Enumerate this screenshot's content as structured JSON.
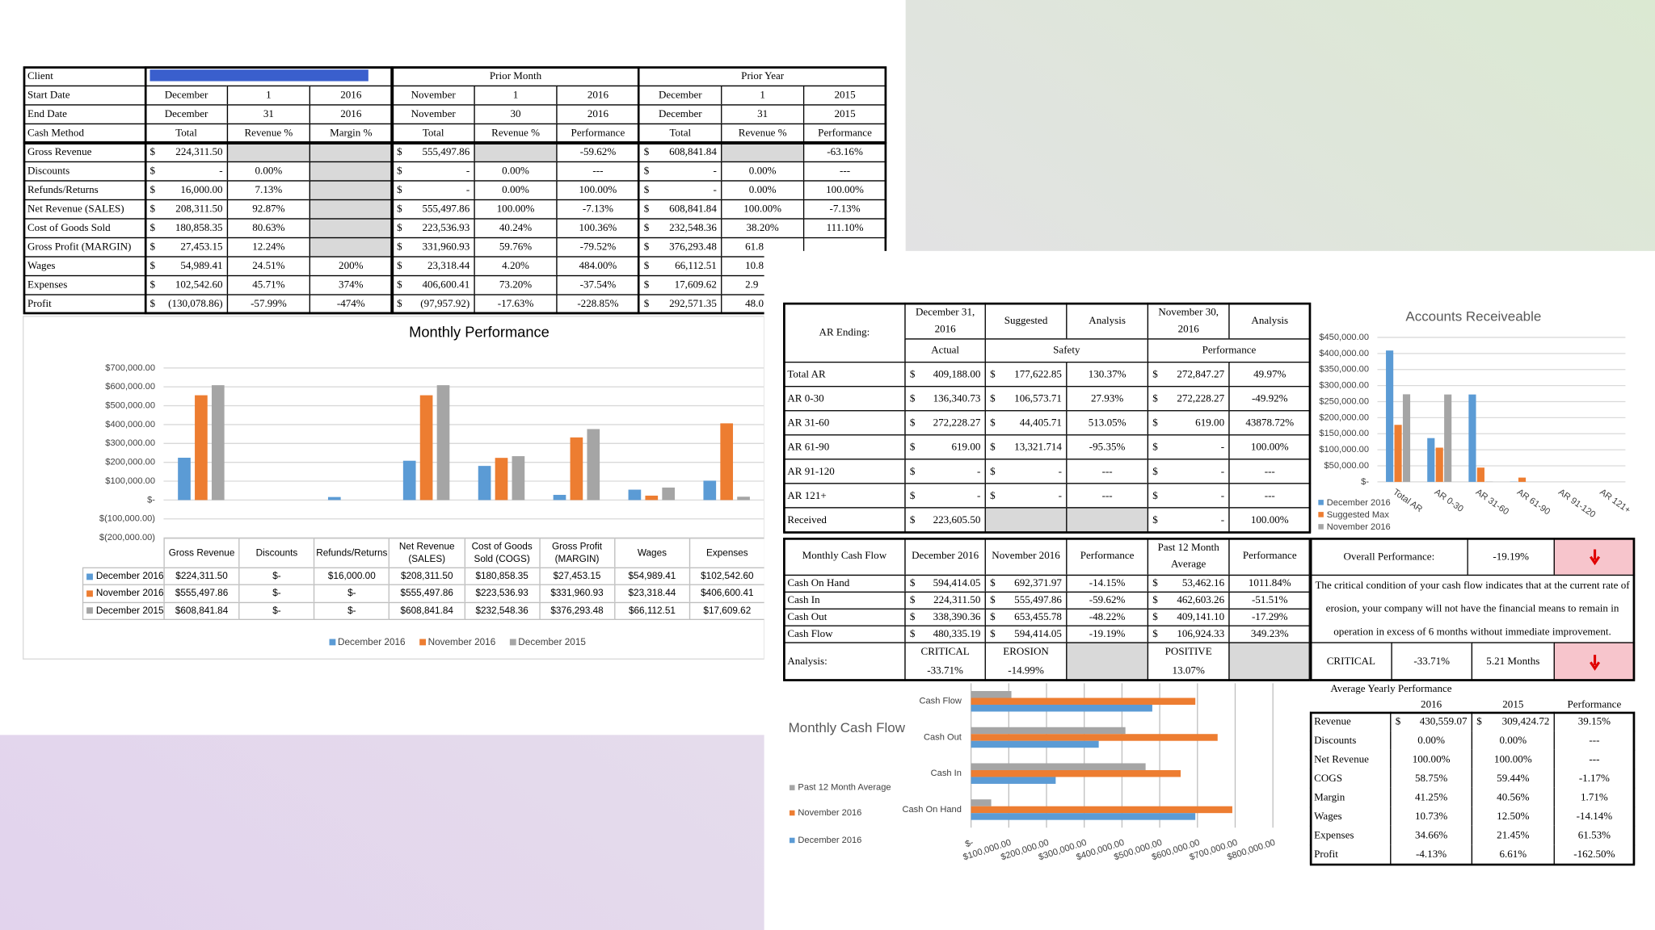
{
  "report": {
    "header": {
      "client": "Client",
      "prior_month": "Prior Month",
      "prior_year": "Prior Year"
    },
    "rows": [
      [
        "Start Date",
        "December",
        "1",
        "2016",
        "November",
        "1",
        "2016",
        "December",
        "1",
        "2015"
      ],
      [
        "End Date",
        "December",
        "31",
        "2016",
        "November",
        "30",
        "2016",
        "December",
        "31",
        "2015"
      ],
      [
        "Cash Method",
        "Total",
        "Revenue %",
        "Margin %",
        "Total",
        "Revenue %",
        "Performance",
        "Total",
        "Revenue %",
        "Performance"
      ],
      [
        "Gross Revenue",
        [
          "$",
          "224,311.50"
        ],
        null,
        null,
        [
          "$",
          "555,497.86"
        ],
        null,
        "-59.62%",
        [
          "$",
          "608,841.84"
        ],
        null,
        "-63.16%"
      ],
      [
        "Discounts",
        [
          "$",
          "-"
        ],
        "0.00%",
        null,
        [
          "$",
          "-"
        ],
        "0.00%",
        "---",
        [
          "$",
          "-"
        ],
        "0.00%",
        "---"
      ],
      [
        "Refunds/Returns",
        [
          "$",
          "16,000.00"
        ],
        "7.13%",
        null,
        [
          "$",
          "-"
        ],
        "0.00%",
        "100.00%",
        [
          "$",
          "-"
        ],
        "0.00%",
        "100.00%"
      ],
      [
        "Net Revenue (SALES)",
        [
          "$",
          "208,311.50"
        ],
        "92.87%",
        null,
        [
          "$",
          "555,497.86"
        ],
        "100.00%",
        "-7.13%",
        [
          "$",
          "608,841.84"
        ],
        "100.00%",
        "-7.13%"
      ],
      [
        "Cost of Goods Sold",
        [
          "$",
          "180,858.35"
        ],
        "80.63%",
        null,
        [
          "$",
          "223,536.93"
        ],
        "40.24%",
        "100.36%",
        [
          "$",
          "232,548.36"
        ],
        "38.20%",
        "111.10%"
      ],
      [
        "Gross Profit (MARGIN)",
        [
          "$",
          "27,453.15"
        ],
        "12.24%",
        null,
        [
          "$",
          "331,960.93"
        ],
        "59.76%",
        "-79.52%",
        [
          "$",
          "376,293.48"
        ],
        "61.8"
      ],
      [
        "Wages",
        [
          "$",
          "54,989.41"
        ],
        "24.51%",
        "200%",
        [
          "$",
          "23,318.44"
        ],
        "4.20%",
        "484.00%",
        [
          "$",
          "66,112.51"
        ],
        "10.8"
      ],
      [
        "Expenses",
        [
          "$",
          "102,542.60"
        ],
        "45.71%",
        "374%",
        [
          "$",
          "406,600.41"
        ],
        "73.20%",
        "-37.54%",
        [
          "$",
          "17,609.62"
        ],
        "2.9"
      ],
      [
        "Profit",
        [
          "$",
          "(130,078.86)"
        ],
        "-57.99%",
        "-474%",
        [
          "$",
          "(97,957.92)"
        ],
        "-17.63%",
        "-228.85%",
        [
          "$",
          "292,571.35"
        ],
        "48.0"
      ]
    ]
  },
  "chart_data": [
    {
      "type": "bar",
      "title": "Monthly Performance",
      "categories": [
        "Gross Revenue",
        "Discounts",
        "Refunds/Returns",
        "Net Revenue (SALES)",
        "Cost of Goods Sold (COGS)",
        "Gross Profit (MARGIN)",
        "Wages",
        "Expenses"
      ],
      "series": [
        {
          "name": "December 2016",
          "color": "#5b9bd5",
          "values": [
            224311.5,
            0,
            16000,
            208311.5,
            180858.35,
            27453.15,
            54989.41,
            102542.6
          ],
          "value_labels": [
            "$224,311.50",
            "$-",
            "$16,000.00",
            "$208,311.50",
            "$180,858.35",
            "$27,453.15",
            "$54,989.41",
            "$102,542.60"
          ]
        },
        {
          "name": "November 2016",
          "color": "#ed7d31",
          "values": [
            555497.86,
            0,
            0,
            555497.86,
            223536.93,
            331960.93,
            23318.44,
            406600.41
          ],
          "value_labels": [
            "$555,497.86",
            "$-",
            "$-",
            "$555,497.86",
            "$223,536.93",
            "$331,960.93",
            "$23,318.44",
            "$406,600.41"
          ]
        },
        {
          "name": "December 2015",
          "color": "#a5a5a5",
          "values": [
            608841.84,
            0,
            0,
            608841.84,
            232548.36,
            376293.48,
            66112.51,
            17609.62
          ],
          "value_labels": [
            "$608,841.84",
            "$-",
            "$-",
            "$608,841.84",
            "$232,548.36",
            "$376,293.48",
            "$66,112.51",
            "$17,609.62"
          ]
        }
      ],
      "ylim": [
        -200000,
        700000
      ],
      "yticks": [
        {
          "value": 700000,
          "label": "$700,000.00"
        },
        {
          "value": 600000,
          "label": "$600,000.00"
        },
        {
          "value": 500000,
          "label": "$500,000.00"
        },
        {
          "value": 400000,
          "label": "$400,000.00"
        },
        {
          "value": 300000,
          "label": "$300,000.00"
        },
        {
          "value": 200000,
          "label": "$200,000.00"
        },
        {
          "value": 100000,
          "label": "$100,000.00"
        },
        {
          "value": 0,
          "label": "$-"
        },
        {
          "value": -100000,
          "label": "$(100,000.00)"
        },
        {
          "value": -200000,
          "label": "$(200,000.00)"
        }
      ],
      "grid": true,
      "legend": "bottom"
    },
    {
      "type": "bar",
      "title": "Accounts Receiveable",
      "categories": [
        "Total AR",
        "AR 0-30",
        "AR 31-60",
        "AR 61-90",
        "AR 91-120",
        "AR 121+"
      ],
      "series": [
        {
          "name": "December 2016",
          "color": "#5b9bd5",
          "values": [
            409188,
            136340.73,
            272228.27,
            619,
            0,
            0
          ]
        },
        {
          "name": "Suggested Max",
          "color": "#ed7d31",
          "values": [
            177622.85,
            106573.71,
            44405.71,
            13321.714,
            0,
            0
          ]
        },
        {
          "name": "November 2016",
          "color": "#a5a5a5",
          "values": [
            272847.27,
            272228.27,
            619,
            0,
            0,
            0
          ]
        }
      ],
      "ylim": [
        0,
        450000
      ],
      "yticks": [
        {
          "value": 450000,
          "label": "$450,000.00"
        },
        {
          "value": 400000,
          "label": "$400,000.00"
        },
        {
          "value": 350000,
          "label": "$350,000.00"
        },
        {
          "value": 300000,
          "label": "$300,000.00"
        },
        {
          "value": 250000,
          "label": "$250,000.00"
        },
        {
          "value": 200000,
          "label": "$200,000.00"
        },
        {
          "value": 150000,
          "label": "$150,000.00"
        },
        {
          "value": 100000,
          "label": "$100,000.00"
        },
        {
          "value": 50000,
          "label": "$50,000.00"
        },
        {
          "value": 0,
          "label": "$-"
        }
      ],
      "grid": true,
      "legend": "bottom-left"
    },
    {
      "type": "barh",
      "title": "Monthly Cash Flow",
      "categories": [
        "Cash Flow",
        "Cash Out",
        "Cash In",
        "Cash On Hand"
      ],
      "series": [
        {
          "name": "Past 12 Month Average",
          "color": "#a5a5a5",
          "values": [
            106924.33,
            409141.1,
            462603.26,
            53462.16
          ]
        },
        {
          "name": "November 2016",
          "color": "#ed7d31",
          "values": [
            594414.05,
            653455.78,
            555497.86,
            692371.97
          ]
        },
        {
          "name": "December 2016",
          "color": "#5b9bd5",
          "values": [
            480335.19,
            338390.36,
            224311.5,
            594414.05
          ]
        }
      ],
      "xlim": [
        0,
        800000
      ],
      "xticks": [
        {
          "value": 0,
          "label": "$-"
        },
        {
          "value": 100000,
          "label": "$100,000.00"
        },
        {
          "value": 200000,
          "label": "$200,000.00"
        },
        {
          "value": 300000,
          "label": "$300,000.00"
        },
        {
          "value": 400000,
          "label": "$400,000.00"
        },
        {
          "value": 500000,
          "label": "$500,000.00"
        },
        {
          "value": 600000,
          "label": "$600,000.00"
        },
        {
          "value": 700000,
          "label": "$700,000.00"
        },
        {
          "value": 800000,
          "label": "$800,000.00"
        }
      ],
      "grid": true,
      "legend": "left"
    }
  ],
  "ar_table": {
    "corner": "AR Ending:",
    "header": [
      "December 31, 2016",
      "Suggested",
      "Analysis",
      "November 30, 2016",
      "Analysis"
    ],
    "subheader": [
      "Actual",
      "Safety",
      "Performance"
    ],
    "rows": [
      [
        "Total AR",
        [
          "$",
          "409,188.00"
        ],
        [
          "$",
          "177,622.85"
        ],
        "130.37%",
        [
          "$",
          "272,847.27"
        ],
        "49.97%"
      ],
      [
        "AR 0-30",
        [
          "$",
          "136,340.73"
        ],
        [
          "$",
          "106,573.71"
        ],
        "27.93%",
        [
          "$",
          "272,228.27"
        ],
        "-49.92%"
      ],
      [
        "AR 31-60",
        [
          "$",
          "272,228.27"
        ],
        [
          "$",
          "44,405.71"
        ],
        "513.05%",
        [
          "$",
          "619.00"
        ],
        "43878.72%"
      ],
      [
        "AR 61-90",
        [
          "$",
          "619.00"
        ],
        [
          "$",
          "13,321.714"
        ],
        "-95.35%",
        [
          "$",
          "-"
        ],
        "100.00%"
      ],
      [
        "AR 91-120",
        [
          "$",
          "-"
        ],
        [
          "$",
          "-"
        ],
        "---",
        [
          "$",
          "-"
        ],
        "---"
      ],
      [
        "AR 121+",
        [
          "$",
          "-"
        ],
        [
          "$",
          "-"
        ],
        "---",
        [
          "$",
          "-"
        ],
        "---"
      ],
      [
        "Received",
        [
          "$",
          "223,605.50"
        ],
        null,
        null,
        [
          "$",
          "-"
        ],
        "100.00%"
      ]
    ]
  },
  "cash_flow_table": {
    "header": [
      "Monthly Cash Flow",
      "December 2016",
      "November 2016",
      "Performance",
      "Past 12 Month Average",
      "Performance"
    ],
    "rows": [
      [
        "Cash On Hand",
        [
          "$",
          "594,414.05"
        ],
        [
          "$",
          "692,371.97"
        ],
        "-14.15%",
        [
          "$",
          "53,462.16"
        ],
        "1011.84%"
      ],
      [
        "Cash In",
        [
          "$",
          "224,311.50"
        ],
        [
          "$",
          "555,497.86"
        ],
        "-59.62%",
        [
          "$",
          "462,603.26"
        ],
        "-51.51%"
      ],
      [
        "Cash Out",
        [
          "$",
          "338,390.36"
        ],
        [
          "$",
          "653,455.78"
        ],
        "-48.22%",
        [
          "$",
          "409,141.10"
        ],
        "-17.29%"
      ],
      [
        "Cash Flow",
        [
          "$",
          "480,335.19"
        ],
        [
          "$",
          "594,414.05"
        ],
        "-19.19%",
        [
          "$",
          "106,924.33"
        ],
        "349.23%"
      ]
    ],
    "analysis": [
      "Analysis:",
      [
        "CRITICAL",
        "-33.71%"
      ],
      [
        "EROSION",
        "-14.99%"
      ],
      null,
      [
        "POSITIVE",
        "13.07%"
      ],
      null
    ]
  },
  "overall": {
    "label": "Overall Performance:",
    "value": "-19.19%",
    "message": "The critical condition of your cash flow indicates that at the current rate of erosion, your company will not have the financial means to remain in operation in excess of 6 months without immediate improvement.",
    "status": "CRITICAL",
    "erosion": "-33.71%",
    "months": "5.21 Months"
  },
  "yearly_table": {
    "title": "Average Yearly Performance",
    "header": [
      "2016",
      "2015",
      "Performance"
    ],
    "rows": [
      [
        "Revenue",
        [
          "$",
          "430,559.07"
        ],
        [
          "$",
          "309,424.72"
        ],
        "39.15%"
      ],
      [
        "Discounts",
        "0.00%",
        "0.00%",
        "---"
      ],
      [
        "Net Revenue",
        "100.00%",
        "100.00%",
        "---"
      ],
      [
        "COGS",
        "58.75%",
        "59.44%",
        "-1.17%"
      ],
      [
        "Margin",
        "41.25%",
        "40.56%",
        "1.71%"
      ],
      [
        "Wages",
        "10.73%",
        "12.50%",
        "-14.14%"
      ],
      [
        "Expenses",
        "34.66%",
        "21.45%",
        "61.53%"
      ],
      [
        "Profit",
        "-4.13%",
        "6.61%",
        "-162.50%"
      ]
    ]
  }
}
